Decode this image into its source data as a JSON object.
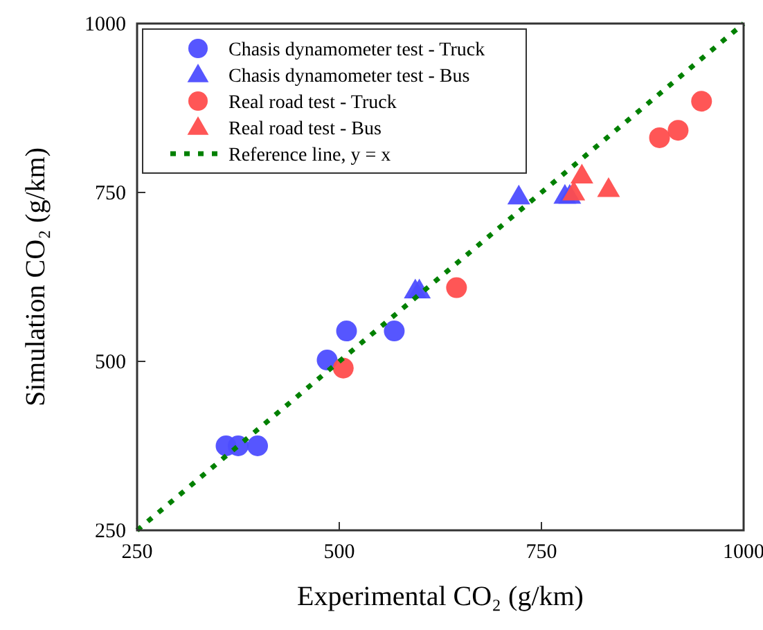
{
  "chart_data": {
    "type": "scatter",
    "xlabel": "Experimental CO₂ (g/km)",
    "ylabel": "Simulation CO₂ (g/km)",
    "xlim": [
      250,
      1000
    ],
    "ylim": [
      250,
      1000
    ],
    "xticks": [
      250,
      500,
      750,
      1000
    ],
    "yticks": [
      250,
      500,
      750,
      1000
    ],
    "grid": false,
    "legend": "top left",
    "series": [
      {
        "name": "Chasis dynamometer test - Truck",
        "color": "#4d4dff",
        "marker": "circle",
        "x": [
          360,
          375,
          399,
          485,
          509,
          568
        ],
        "values": [
          375,
          375,
          375,
          502,
          545,
          545
        ]
      },
      {
        "name": "Chasis dynamometer test - Bus",
        "color": "#4d4dff",
        "marker": "triangle",
        "x": [
          594,
          599,
          722,
          779,
          785
        ],
        "values": [
          605,
          605,
          744,
          745,
          745
        ]
      },
      {
        "name": "Real road test - Truck",
        "color": "#ff4d4d",
        "marker": "circle",
        "x": [
          505,
          645,
          896,
          919,
          948
        ],
        "values": [
          490,
          609,
          831,
          842,
          885
        ]
      },
      {
        "name": "Real road test - Bus",
        "color": "#ff4d4d",
        "marker": "triangle",
        "x": [
          790,
          800,
          833
        ],
        "values": [
          750,
          775,
          755
        ]
      },
      {
        "name": "Reference line, y = x",
        "type": "line",
        "color": "#008000",
        "line_style": "dotted",
        "x": [
          250,
          1000
        ],
        "values": [
          250,
          1000
        ]
      }
    ]
  }
}
